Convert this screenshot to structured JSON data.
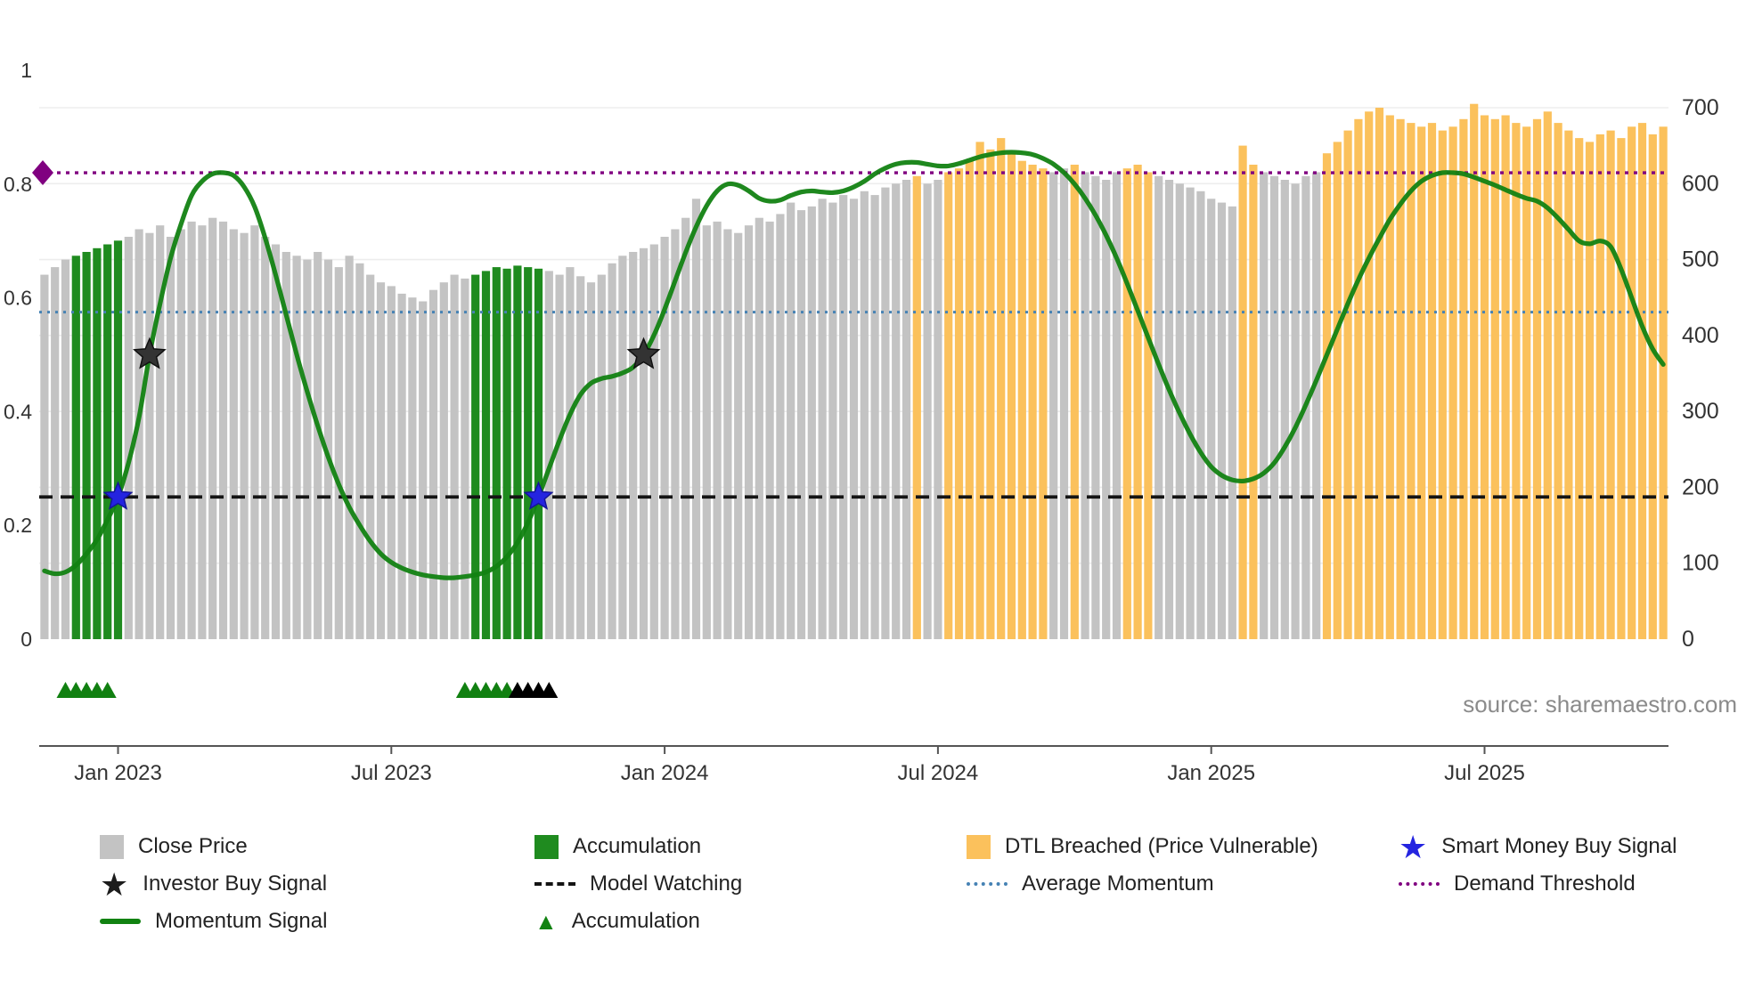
{
  "source_text": "source: sharemaestro.com",
  "colors": {
    "close_price": "#c3c3c3",
    "accumulation": "#1f8b1f",
    "dtl_breached": "#fbc15c",
    "momentum_line": "#128212",
    "model_watching": "#141414",
    "average_momentum": "#4682b4",
    "demand_threshold": "#800080",
    "investor_star": "#333333",
    "smart_money_star": "#2424e0",
    "triangle_green": "#118011",
    "triangle_black": "#000000",
    "gridline": "#ededed",
    "axis_line": "#555555",
    "tick_text": "#333333",
    "source_text": "#8b8b8b"
  },
  "chart_data": {
    "type": "mixed-bar-line",
    "bar_series_name": "Close Price",
    "line_series_name": "Momentum Signal",
    "left_axis": {
      "label": "",
      "range": [
        0,
        1
      ],
      "ticks": [
        "0",
        "0.2",
        "0.4",
        "0.6",
        "0.8",
        "1"
      ],
      "tick_values": [
        0,
        0.2,
        0.4,
        0.6,
        0.8,
        1
      ]
    },
    "right_axis": {
      "label": "",
      "range": [
        0,
        700
      ],
      "ticks": [
        "0",
        "100",
        "200",
        "300",
        "400",
        "500",
        "600",
        "700"
      ],
      "tick_values": [
        0,
        100,
        200,
        300,
        400,
        500,
        600,
        700
      ]
    },
    "x_axis": {
      "ticks": [
        "Jan 2023",
        "Jul 2023",
        "Jan 2024",
        "Jul 2024",
        "Jan 2025",
        "Jul 2025"
      ],
      "tick_indices": [
        7,
        33,
        59,
        85,
        111,
        137
      ]
    },
    "bars": {
      "values": [
        480,
        490,
        500,
        505,
        510,
        515,
        520,
        525,
        530,
        540,
        535,
        545,
        530,
        540,
        550,
        545,
        555,
        550,
        540,
        535,
        545,
        530,
        520,
        510,
        505,
        500,
        510,
        500,
        490,
        505,
        495,
        480,
        470,
        465,
        455,
        450,
        445,
        460,
        470,
        480,
        475,
        480,
        485,
        490,
        488,
        492,
        490,
        488,
        485,
        480,
        490,
        478,
        470,
        480,
        495,
        505,
        510,
        515,
        520,
        530,
        540,
        555,
        580,
        545,
        550,
        540,
        535,
        545,
        555,
        550,
        560,
        575,
        565,
        570,
        580,
        575,
        585,
        580,
        590,
        585,
        595,
        600,
        605,
        610,
        600,
        605,
        615,
        620,
        630,
        655,
        645,
        660,
        640,
        630,
        625,
        620,
        615,
        620,
        625,
        615,
        610,
        605,
        615,
        620,
        625,
        615,
        610,
        605,
        600,
        595,
        590,
        580,
        575,
        570,
        650,
        625,
        615,
        610,
        605,
        600,
        610,
        615,
        640,
        655,
        670,
        685,
        695,
        700,
        690,
        685,
        680,
        675,
        680,
        670,
        675,
        685,
        705,
        690,
        685,
        690,
        680,
        675,
        685,
        695,
        680,
        670,
        660,
        655,
        665,
        670,
        660,
        675,
        680,
        665,
        675
      ],
      "color_segments": [
        {
          "from": 0,
          "to": 2,
          "kind": "close"
        },
        {
          "from": 3,
          "to": 7,
          "kind": "accumulation"
        },
        {
          "from": 8,
          "to": 40,
          "kind": "close"
        },
        {
          "from": 41,
          "to": 47,
          "kind": "accumulation"
        },
        {
          "from": 48,
          "to": 82,
          "kind": "close"
        },
        {
          "from": 83,
          "to": 83,
          "kind": "dtl"
        },
        {
          "from": 84,
          "to": 85,
          "kind": "close"
        },
        {
          "from": 86,
          "to": 95,
          "kind": "dtl"
        },
        {
          "from": 96,
          "to": 97,
          "kind": "close"
        },
        {
          "from": 98,
          "to": 98,
          "kind": "dtl"
        },
        {
          "from": 99,
          "to": 102,
          "kind": "close"
        },
        {
          "from": 103,
          "to": 105,
          "kind": "dtl"
        },
        {
          "from": 106,
          "to": 113,
          "kind": "close"
        },
        {
          "from": 114,
          "to": 115,
          "kind": "dtl"
        },
        {
          "from": 116,
          "to": 121,
          "kind": "close"
        },
        {
          "from": 122,
          "to": 154,
          "kind": "dtl"
        }
      ]
    },
    "momentum": [
      0.12,
      0.115,
      0.118,
      0.13,
      0.15,
      0.175,
      0.21,
      0.25,
      0.31,
      0.39,
      0.5,
      0.59,
      0.67,
      0.73,
      0.78,
      0.805,
      0.818,
      0.82,
      0.815,
      0.795,
      0.76,
      0.705,
      0.64,
      0.57,
      0.5,
      0.435,
      0.375,
      0.32,
      0.272,
      0.232,
      0.2,
      0.172,
      0.15,
      0.135,
      0.125,
      0.118,
      0.113,
      0.11,
      0.108,
      0.108,
      0.11,
      0.113,
      0.118,
      0.128,
      0.145,
      0.17,
      0.205,
      0.25,
      0.3,
      0.35,
      0.395,
      0.43,
      0.45,
      0.458,
      0.462,
      0.468,
      0.478,
      0.5,
      0.535,
      0.58,
      0.63,
      0.68,
      0.725,
      0.762,
      0.788,
      0.8,
      0.798,
      0.788,
      0.775,
      0.77,
      0.772,
      0.78,
      0.786,
      0.788,
      0.786,
      0.785,
      0.788,
      0.795,
      0.805,
      0.818,
      0.828,
      0.835,
      0.838,
      0.838,
      0.835,
      0.832,
      0.832,
      0.836,
      0.842,
      0.848,
      0.852,
      0.855,
      0.856,
      0.855,
      0.852,
      0.845,
      0.835,
      0.82,
      0.8,
      0.775,
      0.745,
      0.71,
      0.67,
      0.625,
      0.578,
      0.53,
      0.483,
      0.438,
      0.397,
      0.36,
      0.328,
      0.303,
      0.288,
      0.28,
      0.278,
      0.282,
      0.292,
      0.31,
      0.338,
      0.372,
      0.412,
      0.455,
      0.5,
      0.545,
      0.59,
      0.632,
      0.67,
      0.705,
      0.738,
      0.765,
      0.788,
      0.805,
      0.815,
      0.82,
      0.82,
      0.818,
      0.812,
      0.805,
      0.798,
      0.79,
      0.782,
      0.775,
      0.77,
      0.758,
      0.74,
      0.72,
      0.7,
      0.695,
      0.7,
      0.69,
      0.65,
      0.6,
      0.55,
      0.51,
      0.483
    ],
    "reference_lines": [
      {
        "name": "Demand Threshold",
        "axis": "left",
        "value": 0.82,
        "style": "dotted",
        "color_key": "demand_threshold"
      },
      {
        "name": "Average Momentum",
        "axis": "left",
        "value": 0.575,
        "style": "dotted",
        "color_key": "average_momentum"
      },
      {
        "name": "Model Watching",
        "axis": "left",
        "value": 0.25,
        "style": "dashed",
        "color_key": "model_watching"
      }
    ],
    "markers": {
      "smart_money_buy_stars": [
        {
          "index": 7,
          "value": 0.25
        },
        {
          "index": 47,
          "value": 0.25
        }
      ],
      "investor_buy_stars": [
        {
          "index": 10,
          "value": 0.5
        },
        {
          "index": 57,
          "value": 0.5
        }
      ],
      "demand_threshold_diamond": {
        "index": 0,
        "value": 0.82
      },
      "accumulation_triangles_green": [
        2,
        3,
        4,
        5,
        6,
        40,
        41,
        42,
        43,
        44
      ],
      "accumulation_triangles_black": [
        45,
        46,
        47,
        48
      ]
    }
  },
  "legend": {
    "items": [
      {
        "label": "Close Price",
        "swatch": "square-gray"
      },
      {
        "label": "Investor Buy Signal",
        "swatch": "star-black"
      },
      {
        "label": "Momentum Signal",
        "swatch": "line-green"
      },
      {
        "label": "Accumulation",
        "swatch": "square-green"
      },
      {
        "label": "Model Watching",
        "swatch": "dash-black"
      },
      {
        "label": "Accumulation",
        "swatch": "triangle-green"
      },
      {
        "label": "DTL Breached (Price Vulnerable)",
        "swatch": "square-orange"
      },
      {
        "label": "Average Momentum",
        "swatch": "dot-blue"
      },
      {
        "label": "Smart Money Buy Signal",
        "swatch": "star-blue"
      },
      {
        "label": "Demand Threshold",
        "swatch": "dot-purple"
      }
    ]
  }
}
